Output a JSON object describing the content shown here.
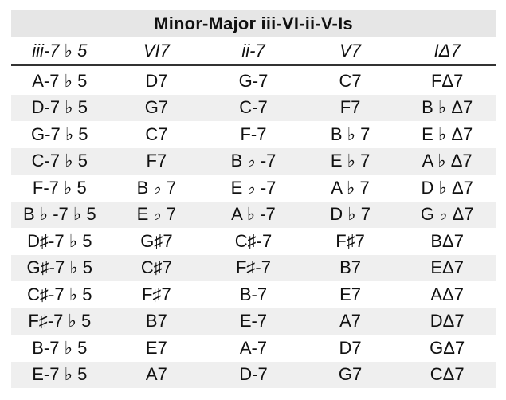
{
  "title": "Minor-Major iii-VI-ii-V-Is",
  "headers": [
    "iii-7 ♭ 5",
    "VI7",
    "ii-7",
    "V7",
    "IΔ7"
  ],
  "rows": [
    [
      "A-7 ♭ 5",
      "D7",
      "G-7",
      "C7",
      "FΔ7"
    ],
    [
      "D-7 ♭ 5",
      "G7",
      "C-7",
      "F7",
      "B ♭ Δ7"
    ],
    [
      "G-7 ♭ 5",
      "C7",
      "F-7",
      "B ♭ 7",
      "E ♭ Δ7"
    ],
    [
      "C-7 ♭ 5",
      "F7",
      "B ♭ -7",
      "E ♭ 7",
      "A ♭ Δ7"
    ],
    [
      "F-7 ♭ 5",
      "B ♭ 7",
      "E ♭ -7",
      "A ♭ 7",
      "D ♭ Δ7"
    ],
    [
      "B ♭ -7 ♭ 5",
      "E ♭ 7",
      "A ♭ -7",
      "D ♭ 7",
      "G ♭ Δ7"
    ],
    [
      "D♯-7 ♭ 5",
      "G♯7",
      "C♯-7",
      "F♯7",
      "BΔ7"
    ],
    [
      "G♯-7 ♭ 5",
      "C♯7",
      "F♯-7",
      "B7",
      "EΔ7"
    ],
    [
      "C♯-7 ♭ 5",
      "F♯7",
      "B-7",
      "E7",
      "AΔ7"
    ],
    [
      "F♯-7 ♭ 5",
      "B7",
      "E-7",
      "A7",
      "DΔ7"
    ],
    [
      "B-7 ♭ 5",
      "E7",
      "A-7",
      "D7",
      "GΔ7"
    ],
    [
      "E-7 ♭ 5",
      "A7",
      "D-7",
      "G7",
      "CΔ7"
    ]
  ],
  "colors": {
    "title_bg": "#e6e6e6",
    "stripe_bg": "#efefef"
  }
}
